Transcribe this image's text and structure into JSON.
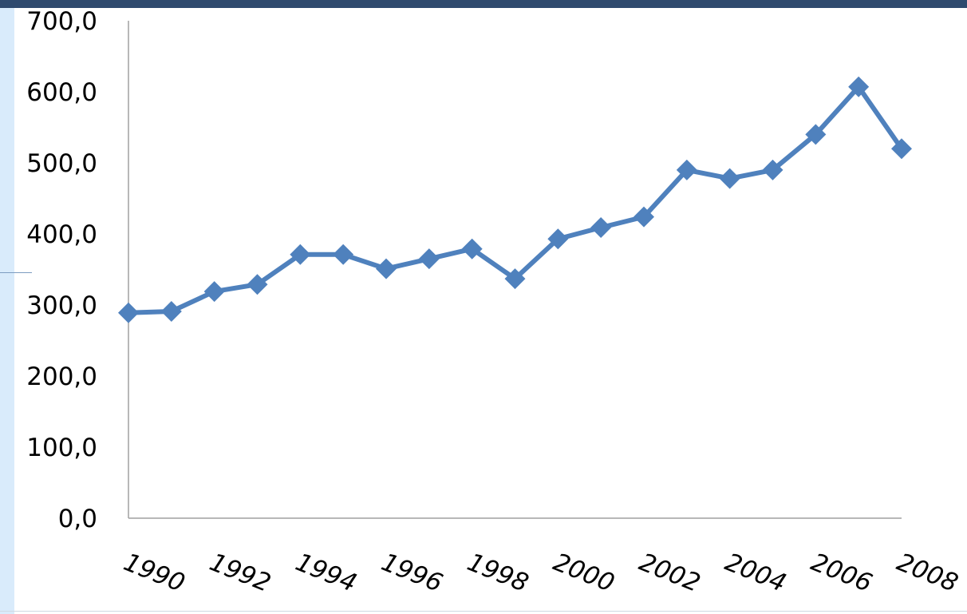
{
  "chart_data": {
    "type": "line",
    "title": "",
    "xlabel": "",
    "ylabel": "",
    "x": [
      1990,
      1991,
      1992,
      1993,
      1994,
      1995,
      1996,
      1997,
      1998,
      1999,
      2000,
      2001,
      2002,
      2003,
      2004,
      2005,
      2006,
      2007,
      2008
    ],
    "series": [
      {
        "values": [
          289,
          291,
          319,
          329,
          371,
          371,
          351,
          365,
          379,
          337,
          393,
          409,
          424,
          490,
          478,
          490,
          540,
          607,
          520
        ]
      }
    ],
    "ylim": [
      0,
      700
    ],
    "y_ticks": [
      "0,0",
      "100,0",
      "200,0",
      "300,0",
      "400,0",
      "500,0",
      "600,0",
      "700,0"
    ],
    "x_tick_labels": [
      "1990",
      "1992",
      "1994",
      "1996",
      "1998",
      "2000",
      "2002",
      "2004",
      "2006",
      "2008"
    ],
    "grid": false,
    "legend": "none",
    "colors": {
      "line": "#4f81bd",
      "axis": "#a0a0a0",
      "frame_top": "#2f4a6e",
      "frame_side": "#d9ebfb"
    }
  }
}
